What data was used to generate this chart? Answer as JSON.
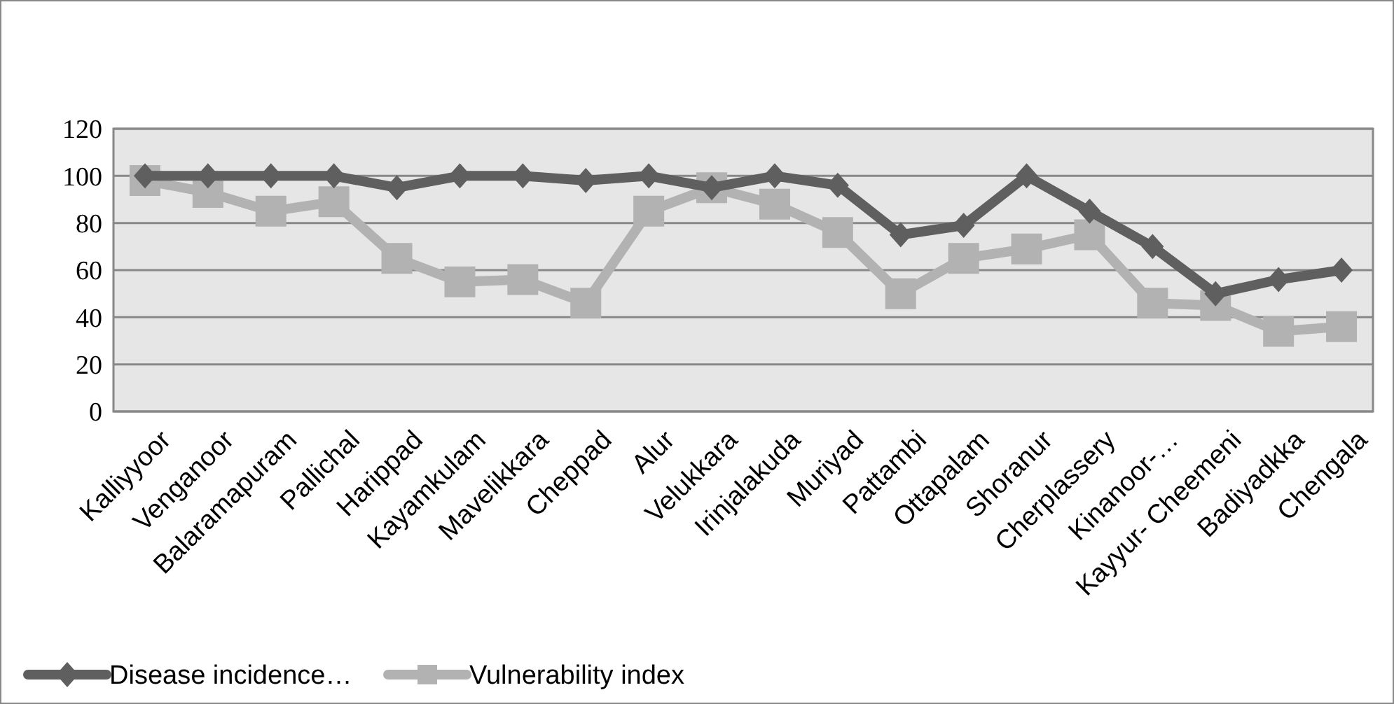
{
  "chart_data": {
    "type": "line",
    "categories": [
      "Kalliyyoor",
      "Venganoor",
      "Balaramapuram",
      "Pallichal",
      "Harippad",
      "Kayamkulam",
      "Mavelikkara",
      "Cheppad",
      "Alur",
      "Velukkara",
      "Irinjalakuda",
      "Muriyad",
      "Pattambi",
      "Ottapalam",
      "Shoranur",
      "Cherplassery",
      "Kinanoor-…",
      "Kayyur- Cheemeni",
      "Badiyadkka",
      "Chengala"
    ],
    "series": [
      {
        "name": "Disease incidence…",
        "color": "#5f5f5f",
        "marker": "diamond",
        "values": [
          100,
          100,
          100,
          100,
          95,
          100,
          100,
          98,
          100,
          95,
          100,
          96,
          75,
          79,
          100,
          85,
          70,
          50,
          56,
          60
        ]
      },
      {
        "name": "Vulnerability index",
        "color": "#b2b2b2",
        "marker": "square",
        "values": [
          98,
          93,
          85,
          89,
          65,
          55,
          56,
          46,
          85,
          95,
          88,
          76,
          50,
          65,
          69,
          75,
          46,
          45,
          34,
          36
        ]
      }
    ],
    "ylim": [
      0,
      120
    ],
    "yticks": [
      0,
      20,
      40,
      60,
      80,
      100,
      120
    ],
    "grid": "y",
    "legend": "bottom left"
  }
}
